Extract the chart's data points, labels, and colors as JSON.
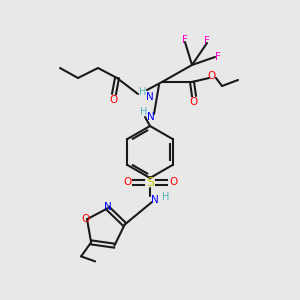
{
  "bg_color": "#e8e8e8",
  "bond_color": "#1a1a1a",
  "colors": {
    "N": "#0000ff",
    "NH": "#0000ff",
    "H": "#4db8b8",
    "O": "#ff0000",
    "F": "#ff00cc",
    "S": "#cccc00",
    "C": "#1a1a1a"
  },
  "figsize": [
    3.0,
    3.0
  ],
  "dpi": 100
}
